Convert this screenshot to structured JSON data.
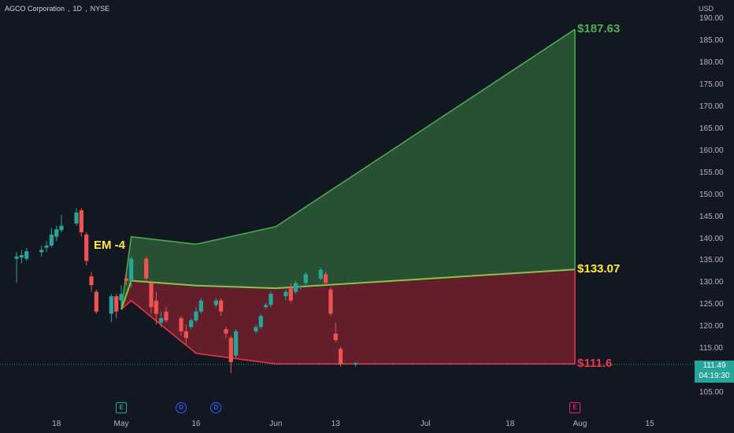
{
  "header": {
    "symbol_name": "AGCO Corporation",
    "interval": "1D",
    "exchange": "NYSE"
  },
  "price_axis": {
    "currency": "USD",
    "current_price": "111.49",
    "countdown": "04:19:30"
  },
  "events": [
    {
      "letter": "E",
      "date": "May 1",
      "kind": "earnings",
      "color": "#26a69a"
    },
    {
      "letter": "D",
      "date": "May 13",
      "kind": "dividend",
      "color": "#2962ff"
    },
    {
      "letter": "D",
      "date": "May 20",
      "kind": "dividend",
      "color": "#2962ff"
    },
    {
      "letter": "E",
      "date": "Jul 31",
      "kind": "earnings",
      "color": "#e91e63"
    }
  ],
  "colors": {
    "up": "#26a69a",
    "down": "#ef5350",
    "upper_band": "#4caf50",
    "middle_line": "#8bc34a",
    "lower_band": "#f23645",
    "em_label": "#ffeb3b",
    "background": "#131722"
  },
  "chart_data": {
    "type": "candlestick",
    "title": "",
    "annotation": "EM -4",
    "ylim": [
      103,
      191
    ],
    "y_ticks": [
      105,
      110,
      115,
      120,
      125,
      130,
      135,
      140,
      145,
      150,
      155,
      160,
      165,
      170,
      175,
      180,
      185,
      190
    ],
    "x_tick_labels": [
      {
        "label": "18",
        "date": "Apr 18"
      },
      {
        "label": "May",
        "date": "May 1"
      },
      {
        "label": "16",
        "date": "May 16"
      },
      {
        "label": "Jun",
        "date": "Jun 1"
      },
      {
        "label": "13",
        "date": "Jun 13"
      },
      {
        "label": "Jul",
        "date": "Jul 1"
      },
      {
        "label": "18",
        "date": "Jul 18"
      },
      {
        "label": "Aug",
        "date": "Aug 1"
      },
      {
        "label": "15",
        "date": "Aug 15"
      }
    ],
    "candles": [
      {
        "date": "Apr 10",
        "open": 135.5,
        "high": 137.0,
        "low": 130.0,
        "close": 136.0
      },
      {
        "date": "Apr 11",
        "open": 135.8,
        "high": 137.5,
        "low": 134.5,
        "close": 136.3
      },
      {
        "date": "Apr 12",
        "open": 135.5,
        "high": 138.0,
        "low": 135.0,
        "close": 137.2
      },
      {
        "date": "Apr 15",
        "open": 137.0,
        "high": 138.5,
        "low": 136.0,
        "close": 137.5
      },
      {
        "date": "Apr 16",
        "open": 138.0,
        "high": 139.5,
        "low": 137.0,
        "close": 138.5
      },
      {
        "date": "Apr 17",
        "open": 138.5,
        "high": 142.5,
        "low": 138.0,
        "close": 141.0
      },
      {
        "date": "Apr 18",
        "open": 140.5,
        "high": 143.0,
        "low": 139.5,
        "close": 142.2
      },
      {
        "date": "Apr 19",
        "open": 142.0,
        "high": 145.5,
        "low": 141.5,
        "close": 143.0
      },
      {
        "date": "Apr 22",
        "open": 143.5,
        "high": 147.0,
        "low": 143.0,
        "close": 146.0
      },
      {
        "date": "Apr 23",
        "open": 146.5,
        "high": 147.0,
        "low": 140.5,
        "close": 141.5
      },
      {
        "date": "Apr 24",
        "open": 141.0,
        "high": 141.5,
        "low": 134.0,
        "close": 135.0
      },
      {
        "date": "Apr 25",
        "open": 131.5,
        "high": 132.5,
        "low": 128.0,
        "close": 129.5
      },
      {
        "date": "Apr 26",
        "open": 128.0,
        "high": 128.5,
        "low": 123.0,
        "close": 123.5
      },
      {
        "date": "Apr 29",
        "open": 123.0,
        "high": 127.5,
        "low": 121.0,
        "close": 127.0
      },
      {
        "date": "Apr 30",
        "open": 127.0,
        "high": 127.5,
        "low": 122.0,
        "close": 123.5
      },
      {
        "date": "May 1",
        "open": 126.0,
        "high": 129.5,
        "low": 124.5,
        "close": 127.5
      },
      {
        "date": "May 2",
        "open": 131.0,
        "high": 132.0,
        "low": 129.5,
        "close": 130.5
      },
      {
        "date": "May 3",
        "open": 130.5,
        "high": 136.0,
        "low": 129.0,
        "close": 135.5
      },
      {
        "date": "May 6",
        "open": 135.5,
        "high": 136.0,
        "low": 130.0,
        "close": 131.0
      },
      {
        "date": "May 7",
        "open": 130.0,
        "high": 130.5,
        "low": 123.0,
        "close": 124.5
      },
      {
        "date": "May 8",
        "open": 126.0,
        "high": 128.0,
        "low": 120.5,
        "close": 123.0
      },
      {
        "date": "May 9",
        "open": 121.0,
        "high": 123.5,
        "low": 120.0,
        "close": 122.0
      },
      {
        "date": "May 10",
        "open": 123.5,
        "high": 124.5,
        "low": 121.0,
        "close": 121.5
      },
      {
        "date": "May 13",
        "open": 122.0,
        "high": 122.5,
        "low": 118.0,
        "close": 119.0
      },
      {
        "date": "May 14",
        "open": 119.0,
        "high": 120.5,
        "low": 116.0,
        "close": 117.5
      },
      {
        "date": "May 15",
        "open": 120.0,
        "high": 122.0,
        "low": 119.5,
        "close": 121.5
      },
      {
        "date": "May 16",
        "open": 121.5,
        "high": 124.5,
        "low": 121.0,
        "close": 123.5
      },
      {
        "date": "May 17",
        "open": 123.5,
        "high": 126.5,
        "low": 123.0,
        "close": 126.0
      },
      {
        "date": "May 20",
        "open": 125.0,
        "high": 126.5,
        "low": 124.5,
        "close": 126.0
      },
      {
        "date": "May 21",
        "open": 126.0,
        "high": 126.5,
        "low": 122.5,
        "close": 123.5
      },
      {
        "date": "May 22",
        "open": 119.5,
        "high": 120.0,
        "low": 117.5,
        "close": 118.5
      },
      {
        "date": "May 23",
        "open": 117.5,
        "high": 118.0,
        "low": 109.5,
        "close": 112.0
      },
      {
        "date": "May 24",
        "open": 113.5,
        "high": 119.5,
        "low": 113.0,
        "close": 119.0
      },
      {
        "date": "May 28",
        "open": 119.0,
        "high": 120.5,
        "low": 118.5,
        "close": 120.0
      },
      {
        "date": "May 29",
        "open": 120.0,
        "high": 123.0,
        "low": 119.5,
        "close": 122.5
      },
      {
        "date": "May 30",
        "open": 124.5,
        "high": 125.5,
        "low": 124.0,
        "close": 125.0
      },
      {
        "date": "May 31",
        "open": 125.0,
        "high": 128.0,
        "low": 124.5,
        "close": 127.5
      },
      {
        "date": "Jun 3",
        "open": 127.0,
        "high": 128.5,
        "low": 126.0,
        "close": 128.0
      },
      {
        "date": "Jun 4",
        "open": 129.0,
        "high": 130.0,
        "low": 125.5,
        "close": 126.0
      },
      {
        "date": "Jun 5",
        "open": 128.0,
        "high": 130.5,
        "low": 127.5,
        "close": 130.0
      },
      {
        "date": "Jun 6",
        "open": 129.0,
        "high": 129.5,
        "low": 128.5,
        "close": 129.2
      },
      {
        "date": "Jun 7",
        "open": 130.0,
        "high": 132.5,
        "low": 129.5,
        "close": 132.0
      },
      {
        "date": "Jun 10",
        "open": 131.0,
        "high": 133.5,
        "low": 130.5,
        "close": 133.0
      },
      {
        "date": "Jun 11",
        "open": 132.0,
        "high": 132.5,
        "low": 129.5,
        "close": 130.0
      },
      {
        "date": "Jun 12",
        "open": 128.5,
        "high": 129.0,
        "low": 122.5,
        "close": 123.0
      },
      {
        "date": "Jun 13",
        "open": 118.5,
        "high": 121.0,
        "low": 116.5,
        "close": 117.0
      },
      {
        "date": "Jun 14",
        "open": 115.0,
        "high": 115.5,
        "low": 111.0,
        "close": 111.5
      },
      {
        "date": "Jun 17",
        "open": 111.5,
        "high": 112.0,
        "low": 111.0,
        "close": 111.8
      }
    ],
    "upper_band": [
      {
        "date": "May 1",
        "value": 124.0
      },
      {
        "date": "May 3",
        "value": 140.5
      },
      {
        "date": "May 16",
        "value": 138.8
      },
      {
        "date": "Jun 1",
        "value": 142.8
      },
      {
        "date": "Jul 31",
        "value": 187.63
      }
    ],
    "middle_line": [
      {
        "date": "May 1",
        "value": 124.0
      },
      {
        "date": "May 3",
        "value": 130.5
      },
      {
        "date": "May 16",
        "value": 129.4
      },
      {
        "date": "Jun 1",
        "value": 128.8
      },
      {
        "date": "Jul 31",
        "value": 133.07
      }
    ],
    "lower_band": [
      {
        "date": "May 1",
        "value": 124.0
      },
      {
        "date": "May 3",
        "value": 126.0
      },
      {
        "date": "May 16",
        "value": 114.0
      },
      {
        "date": "Jun 1",
        "value": 111.6
      },
      {
        "date": "Jul 31",
        "value": 111.6
      }
    ],
    "level_labels": [
      {
        "text": "$187.63",
        "value": 187.63,
        "color": "#4caf50"
      },
      {
        "text": "$133.07",
        "value": 133.07,
        "color": "#ffeb3b"
      },
      {
        "text": "$111.6",
        "value": 111.6,
        "color": "#f23645"
      }
    ]
  }
}
